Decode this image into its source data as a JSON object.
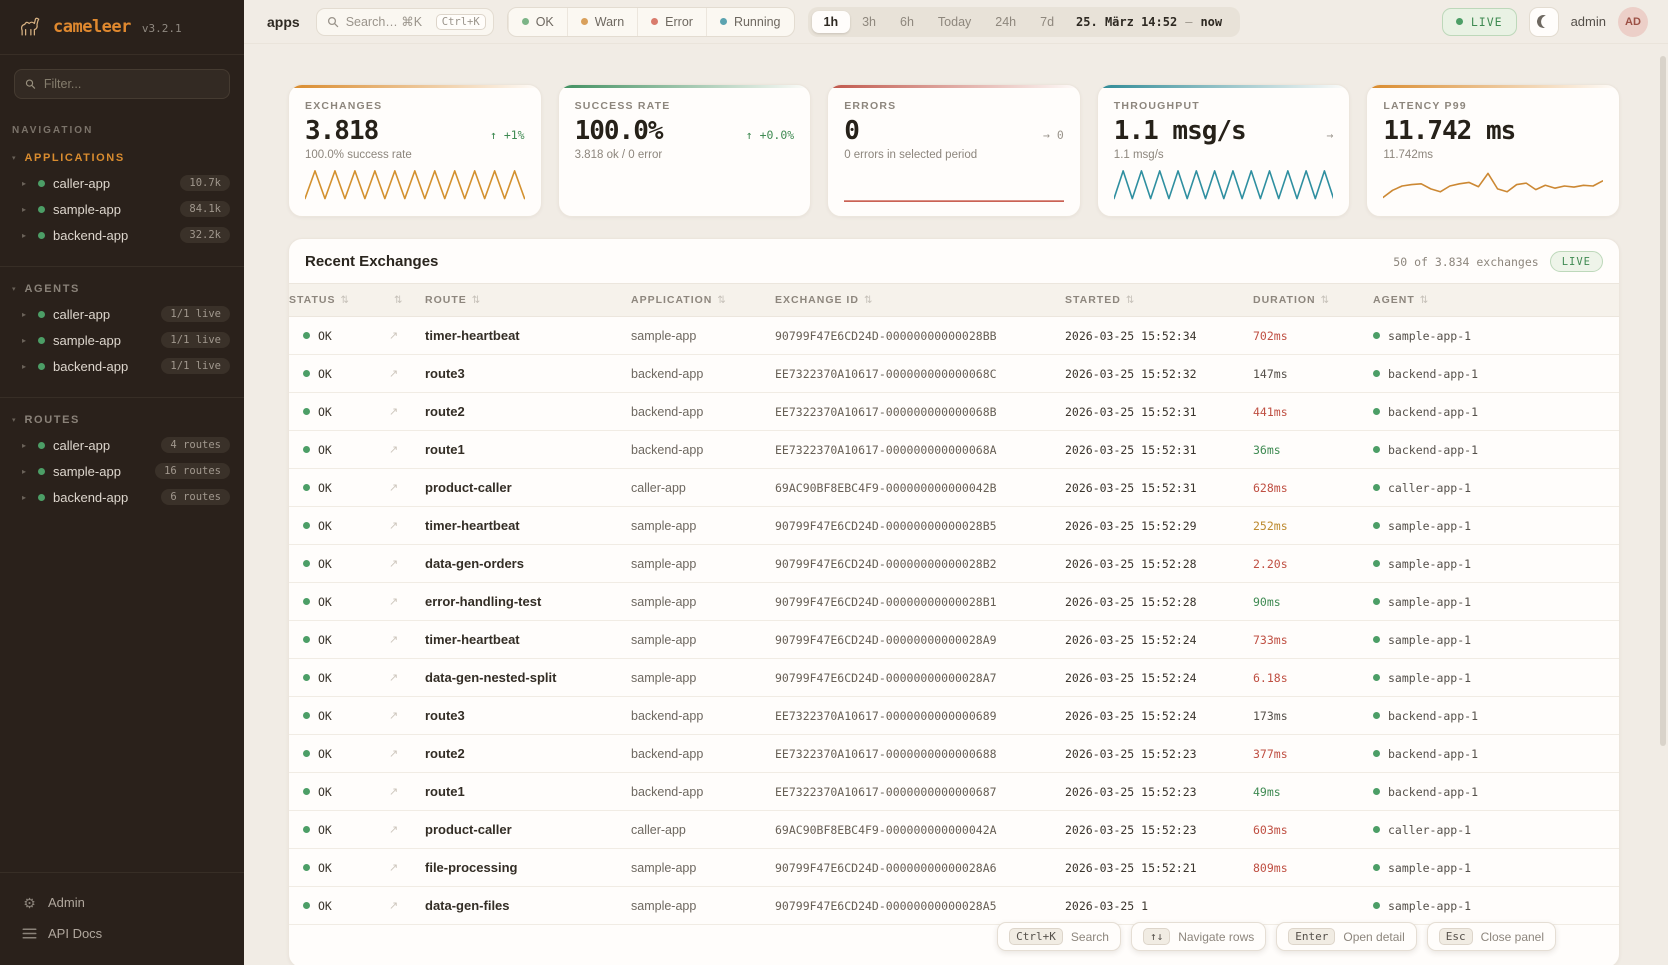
{
  "sidebar": {
    "logo": {
      "name": "cameleer",
      "version": "v3.2.1"
    },
    "filter_placeholder": "Filter...",
    "nav_label": "NAVIGATION",
    "applications": {
      "label": "APPLICATIONS",
      "items": [
        {
          "name": "caller-app",
          "badge": "10.7k"
        },
        {
          "name": "sample-app",
          "badge": "84.1k"
        },
        {
          "name": "backend-app",
          "badge": "32.2k"
        }
      ]
    },
    "agents": {
      "label": "AGENTS",
      "items": [
        {
          "name": "caller-app",
          "badge": "1/1 live"
        },
        {
          "name": "sample-app",
          "badge": "1/1 live"
        },
        {
          "name": "backend-app",
          "badge": "1/1 live"
        }
      ]
    },
    "routes": {
      "label": "ROUTES",
      "items": [
        {
          "name": "caller-app",
          "badge": "4 routes"
        },
        {
          "name": "sample-app",
          "badge": "16 routes"
        },
        {
          "name": "backend-app",
          "badge": "6 routes"
        }
      ]
    },
    "footer": {
      "admin_label": "Admin",
      "apidocs_label": "API Docs"
    }
  },
  "topbar": {
    "context_label": "apps",
    "search": {
      "placeholder": "Search… ⌘K",
      "kbd": "Ctrl+K"
    },
    "status_filters": [
      {
        "label": "OK",
        "color": "#7cb487"
      },
      {
        "label": "Warn",
        "color": "#d9a05b"
      },
      {
        "label": "Error",
        "color": "#d97b6c"
      },
      {
        "label": "Running",
        "color": "#5ba3b0"
      }
    ],
    "time_ranges": [
      {
        "label": "1h",
        "class": "active"
      },
      {
        "label": "3h"
      },
      {
        "label": "6h"
      },
      {
        "label": "Today"
      },
      {
        "label": "24h"
      },
      {
        "label": "7d"
      }
    ],
    "time_display": {
      "from": "25. März 14:52",
      "sep": "—",
      "to": "now"
    },
    "live_label": "LIVE",
    "user": {
      "name": "admin",
      "initials": "AD"
    }
  },
  "cards": [
    {
      "label": "EXCHANGES",
      "value": "3.818",
      "delta": "↑ +1%",
      "delta_class": "green",
      "sub": "100.0% success rate",
      "accent": "#d98a2b",
      "spark": {
        "color": "#d3912f",
        "points": [
          85,
          8,
          85,
          8,
          85,
          8,
          85,
          8,
          85,
          8,
          85,
          8,
          85,
          8,
          85,
          8,
          85,
          8,
          85,
          8,
          85,
          8,
          85
        ]
      }
    },
    {
      "label": "SUCCESS RATE",
      "value": "100.0%",
      "delta": "↑ +0.0%",
      "delta_class": "green",
      "sub": "3.818 ok / 0 error",
      "accent": "#3f8f5f"
    },
    {
      "label": "ERRORS",
      "value": "0",
      "delta": "→ 0",
      "delta_class": "gray",
      "sub": "0 errors in selected period",
      "accent": "#c0564a",
      "spark": {
        "color": "#c24b3c",
        "points": [
          92,
          92
        ]
      }
    },
    {
      "label": "THROUGHPUT",
      "value": "1.1 msg/s",
      "delta": "→",
      "delta_class": "gray",
      "sub": "1.1 msg/s",
      "accent": "#2e8a96",
      "spark": {
        "color": "#2f8fa0",
        "points": [
          85,
          8,
          85,
          8,
          85,
          8,
          85,
          8,
          85,
          8,
          85,
          8,
          85,
          8,
          85,
          8,
          85,
          8,
          85,
          8,
          85,
          8,
          85,
          8,
          85
        ]
      }
    },
    {
      "label": "LATENCY P99",
      "value": "11.742 ms",
      "delta": "",
      "delta_class": "gray",
      "sub": "11.742ms",
      "accent": "#d98a2b",
      "spark": {
        "color": "#cc8833",
        "points": [
          82,
          62,
          50,
          46,
          44,
          58,
          66,
          50,
          44,
          40,
          52,
          15,
          58,
          66,
          46,
          42,
          60,
          48,
          56,
          50,
          53,
          48,
          50,
          36
        ]
      }
    }
  ],
  "table": {
    "title": "Recent Exchanges",
    "meta": "50 of 3.834 exchanges",
    "live_label": "LIVE",
    "columns": [
      {
        "label": "STATUS"
      },
      {
        "label": ""
      },
      {
        "label": "ROUTE"
      },
      {
        "label": "APPLICATION"
      },
      {
        "label": "EXCHANGE ID"
      },
      {
        "label": "STARTED"
      },
      {
        "label": "DURATION"
      },
      {
        "label": "AGENT"
      }
    ],
    "rows": [
      {
        "status": "OK",
        "route": "timer-heartbeat",
        "app": "sample-app",
        "exchange_id": "90799F47E6CD24D-00000000000028BB",
        "started": "2026-03-25 15:52:34",
        "duration": "702ms",
        "dur_class": "dur-red",
        "agent": "sample-app-1"
      },
      {
        "status": "OK",
        "route": "route3",
        "app": "backend-app",
        "exchange_id": "EE7322370A10617-000000000000068C",
        "started": "2026-03-25 15:52:32",
        "duration": "147ms",
        "dur_class": "dur-default",
        "agent": "backend-app-1"
      },
      {
        "status": "OK",
        "route": "route2",
        "app": "backend-app",
        "exchange_id": "EE7322370A10617-000000000000068B",
        "started": "2026-03-25 15:52:31",
        "duration": "441ms",
        "dur_class": "dur-red",
        "agent": "backend-app-1"
      },
      {
        "status": "OK",
        "route": "route1",
        "app": "backend-app",
        "exchange_id": "EE7322370A10617-000000000000068A",
        "started": "2026-03-25 15:52:31",
        "duration": "36ms",
        "dur_class": "dur-green",
        "agent": "backend-app-1"
      },
      {
        "status": "OK",
        "route": "product-caller",
        "app": "caller-app",
        "exchange_id": "69AC90BF8EBC4F9-000000000000042B",
        "started": "2026-03-25 15:52:31",
        "duration": "628ms",
        "dur_class": "dur-red",
        "agent": "caller-app-1"
      },
      {
        "status": "OK",
        "route": "timer-heartbeat",
        "app": "sample-app",
        "exchange_id": "90799F47E6CD24D-00000000000028B5",
        "started": "2026-03-25 15:52:29",
        "duration": "252ms",
        "dur_class": "dur-amber",
        "agent": "sample-app-1"
      },
      {
        "status": "OK",
        "route": "data-gen-orders",
        "app": "sample-app",
        "exchange_id": "90799F47E6CD24D-00000000000028B2",
        "started": "2026-03-25 15:52:28",
        "duration": "2.20s",
        "dur_class": "dur-red",
        "agent": "sample-app-1"
      },
      {
        "status": "OK",
        "route": "error-handling-test",
        "app": "sample-app",
        "exchange_id": "90799F47E6CD24D-00000000000028B1",
        "started": "2026-03-25 15:52:28",
        "duration": "90ms",
        "dur_class": "dur-green",
        "agent": "sample-app-1"
      },
      {
        "status": "OK",
        "route": "timer-heartbeat",
        "app": "sample-app",
        "exchange_id": "90799F47E6CD24D-00000000000028A9",
        "started": "2026-03-25 15:52:24",
        "duration": "733ms",
        "dur_class": "dur-red",
        "agent": "sample-app-1"
      },
      {
        "status": "OK",
        "route": "data-gen-nested-split",
        "app": "sample-app",
        "exchange_id": "90799F47E6CD24D-00000000000028A7",
        "started": "2026-03-25 15:52:24",
        "duration": "6.18s",
        "dur_class": "dur-red",
        "agent": "sample-app-1"
      },
      {
        "status": "OK",
        "route": "route3",
        "app": "backend-app",
        "exchange_id": "EE7322370A10617-0000000000000689",
        "started": "2026-03-25 15:52:24",
        "duration": "173ms",
        "dur_class": "dur-default",
        "agent": "backend-app-1"
      },
      {
        "status": "OK",
        "route": "route2",
        "app": "backend-app",
        "exchange_id": "EE7322370A10617-0000000000000688",
        "started": "2026-03-25 15:52:23",
        "duration": "377ms",
        "dur_class": "dur-red",
        "agent": "backend-app-1"
      },
      {
        "status": "OK",
        "route": "route1",
        "app": "backend-app",
        "exchange_id": "EE7322370A10617-0000000000000687",
        "started": "2026-03-25 15:52:23",
        "duration": "49ms",
        "dur_class": "dur-green",
        "agent": "backend-app-1"
      },
      {
        "status": "OK",
        "route": "product-caller",
        "app": "caller-app",
        "exchange_id": "69AC90BF8EBC4F9-000000000000042A",
        "started": "2026-03-25 15:52:23",
        "duration": "603ms",
        "dur_class": "dur-red",
        "agent": "caller-app-1"
      },
      {
        "status": "OK",
        "route": "file-processing",
        "app": "sample-app",
        "exchange_id": "90799F47E6CD24D-00000000000028A6",
        "started": "2026-03-25 15:52:21",
        "duration": "809ms",
        "dur_class": "dur-red",
        "agent": "sample-app-1"
      },
      {
        "status": "OK",
        "route": "data-gen-files",
        "app": "sample-app",
        "exchange_id": "90799F47E6CD24D-00000000000028A5",
        "started": "2026-03-25 1",
        "duration": "",
        "dur_class": "dur-default",
        "agent": "sample-app-1"
      }
    ]
  },
  "hints": [
    {
      "key": "Ctrl+K",
      "label": "Search"
    },
    {
      "key": "↑↓",
      "label": "Navigate rows"
    },
    {
      "key": "Enter",
      "label": "Open detail"
    },
    {
      "key": "Esc",
      "label": "Close panel"
    }
  ],
  "colors": {
    "accent_orange": "#d98a2b",
    "accent_green": "#3f8f5f",
    "accent_red": "#c0564a",
    "accent_teal": "#2e8a96",
    "live_green": "#3f8a52",
    "duration_red": "#bf4f42",
    "duration_amber": "#bd8a2f",
    "duration_green": "#3f8a52"
  }
}
